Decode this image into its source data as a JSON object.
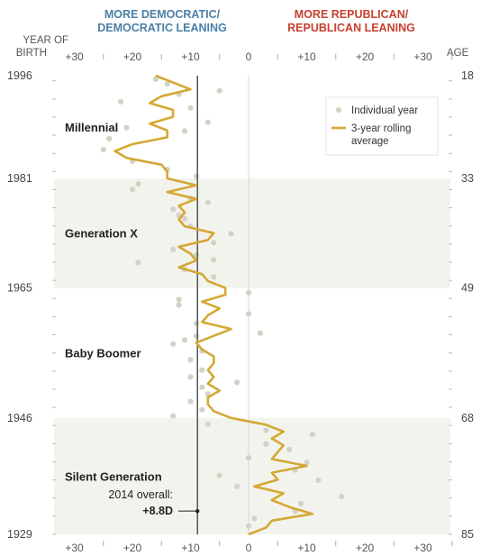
{
  "header": {
    "dem_line1": "MORE DEMOCRATIC/",
    "dem_line2": "DEMOCRATIC LEANING",
    "rep_line1": "MORE REPUBLICAN/",
    "rep_line2": "REPUBLICAN LEANING",
    "year_label_1": "YEAR OF",
    "year_label_2": "BIRTH",
    "age_label": "AGE"
  },
  "colors": {
    "line": "#d4a834",
    "dots": "#d2d3c4",
    "band": "#f3f3ee",
    "reference": "#555555",
    "democratic": "#4a7fa6",
    "republican": "#c5412f"
  },
  "chart_data": {
    "type": "line",
    "xlabel": "",
    "ylabel": "",
    "xlim": [
      -33,
      40
    ],
    "ylim": [
      1929,
      1996
    ],
    "x_ticks": [
      -30,
      -20,
      -10,
      0,
      10,
      20,
      30
    ],
    "x_tick_labels": [
      "+30",
      "+20",
      "+10",
      "0",
      "+10",
      "+20",
      "+30"
    ],
    "year_ticks": [
      1996,
      1981,
      1965,
      1946,
      1929
    ],
    "age_ticks": [
      {
        "year": 1996,
        "age": "18"
      },
      {
        "year": 1981,
        "age": "33"
      },
      {
        "year": 1965,
        "age": "49"
      },
      {
        "year": 1946,
        "age": "68"
      },
      {
        "year": 1929,
        "age": "85"
      }
    ],
    "generations": [
      {
        "name": "Millennial",
        "from": 1981,
        "to": 1996,
        "shaded": false
      },
      {
        "name": "Generation X",
        "from": 1965,
        "to": 1981,
        "shaded": true
      },
      {
        "name": "Baby Boomer",
        "from": 1946,
        "to": 1965,
        "shaded": false
      },
      {
        "name": "Silent Generation",
        "from": 1929,
        "to": 1946,
        "shaded": true
      }
    ],
    "overall": {
      "value": -8.8,
      "label_line1": "2014 overall:",
      "label_line2": "+8.8D"
    },
    "legend": {
      "individual": "Individual year",
      "rolling_1": "3-year rolling",
      "rolling_2": "average",
      "position": "top-right"
    },
    "series": [
      {
        "name": "3-year rolling average",
        "years": [
          1996,
          1995,
          1994,
          1993,
          1992,
          1991,
          1990,
          1989,
          1988,
          1987,
          1986,
          1985,
          1984,
          1983,
          1982,
          1981,
          1980,
          1979,
          1978,
          1977,
          1976,
          1975,
          1974,
          1973,
          1972,
          1971,
          1970,
          1969,
          1968,
          1967,
          1966,
          1965,
          1964,
          1963,
          1962,
          1961,
          1960,
          1959,
          1958,
          1957,
          1956,
          1955,
          1954,
          1953,
          1952,
          1951,
          1950,
          1949,
          1948,
          1947,
          1946,
          1945,
          1944,
          1943,
          1942,
          1941,
          1940,
          1939,
          1938,
          1937,
          1936,
          1935,
          1934,
          1933,
          1932,
          1931,
          1930,
          1929
        ],
        "values": [
          -16,
          -13,
          -10,
          -15,
          -17,
          -13,
          -13,
          -17,
          -14,
          -14,
          -20,
          -23,
          -21,
          -15,
          -14,
          -14,
          -9,
          -14,
          -9,
          -12,
          -11,
          -12,
          -11,
          -6,
          -7,
          -12,
          -10,
          -9,
          -12,
          -8,
          -7,
          -4,
          -4,
          -8,
          -5,
          -7,
          -8,
          -3,
          -6,
          -9,
          -8,
          -6,
          -6,
          -7,
          -6,
          -7,
          -5,
          -7,
          -7,
          -6,
          -3,
          3,
          6,
          4,
          6,
          5,
          4,
          10,
          4,
          5,
          1,
          6,
          4,
          7,
          11,
          4,
          3,
          0
        ]
      },
      {
        "name": "Individual year",
        "points": [
          {
            "year": 1995.5,
            "value": -16
          },
          {
            "year": 1994.8,
            "value": -14
          },
          {
            "year": 1993.8,
            "value": -5
          },
          {
            "year": 1993.3,
            "value": -12
          },
          {
            "year": 1992.2,
            "value": -22
          },
          {
            "year": 1991.3,
            "value": -10
          },
          {
            "year": 1989.2,
            "value": -7
          },
          {
            "year": 1988.4,
            "value": -21
          },
          {
            "year": 1987.9,
            "value": -11
          },
          {
            "year": 1986.8,
            "value": -24
          },
          {
            "year": 1985.2,
            "value": -25
          },
          {
            "year": 1983.5,
            "value": -20
          },
          {
            "year": 1982.3,
            "value": -14
          },
          {
            "year": 1981.3,
            "value": -9
          },
          {
            "year": 1980.2,
            "value": -19
          },
          {
            "year": 1979.4,
            "value": -20
          },
          {
            "year": 1978.1,
            "value": -10
          },
          {
            "year": 1977.5,
            "value": -7
          },
          {
            "year": 1976.5,
            "value": -13
          },
          {
            "year": 1975.6,
            "value": -12
          },
          {
            "year": 1975.1,
            "value": -11
          },
          {
            "year": 1974.0,
            "value": -10
          },
          {
            "year": 1972.9,
            "value": -3
          },
          {
            "year": 1971.6,
            "value": -6
          },
          {
            "year": 1970.6,
            "value": -13
          },
          {
            "year": 1969.8,
            "value": -9
          },
          {
            "year": 1969.1,
            "value": -6
          },
          {
            "year": 1968.7,
            "value": -19
          },
          {
            "year": 1967.7,
            "value": -11
          },
          {
            "year": 1966.6,
            "value": -6
          },
          {
            "year": 1964.3,
            "value": 0
          },
          {
            "year": 1963.3,
            "value": -12
          },
          {
            "year": 1962.5,
            "value": -12
          },
          {
            "year": 1961.2,
            "value": 0
          },
          {
            "year": 1959.8,
            "value": -9
          },
          {
            "year": 1958.4,
            "value": 2
          },
          {
            "year": 1958.0,
            "value": -9
          },
          {
            "year": 1957.4,
            "value": -11
          },
          {
            "year": 1956.8,
            "value": -13
          },
          {
            "year": 1955.8,
            "value": -8
          },
          {
            "year": 1954.5,
            "value": -10
          },
          {
            "year": 1953.0,
            "value": -8
          },
          {
            "year": 1952.0,
            "value": -10
          },
          {
            "year": 1951.2,
            "value": -2
          },
          {
            "year": 1950.5,
            "value": -8
          },
          {
            "year": 1949.5,
            "value": -7
          },
          {
            "year": 1948.4,
            "value": -10
          },
          {
            "year": 1947.2,
            "value": -8
          },
          {
            "year": 1946.3,
            "value": -13
          },
          {
            "year": 1945.1,
            "value": -7
          },
          {
            "year": 1944.2,
            "value": 3
          },
          {
            "year": 1943.6,
            "value": 11
          },
          {
            "year": 1942.2,
            "value": 3
          },
          {
            "year": 1941.4,
            "value": 7
          },
          {
            "year": 1940.2,
            "value": 0
          },
          {
            "year": 1939.5,
            "value": 10
          },
          {
            "year": 1938.4,
            "value": 8
          },
          {
            "year": 1937.6,
            "value": -5
          },
          {
            "year": 1936.9,
            "value": 12
          },
          {
            "year": 1936.0,
            "value": -2
          },
          {
            "year": 1934.5,
            "value": 16
          },
          {
            "year": 1933.5,
            "value": 9
          },
          {
            "year": 1932.4,
            "value": 8
          },
          {
            "year": 1931.3,
            "value": 1
          },
          {
            "year": 1930.2,
            "value": 0
          }
        ]
      }
    ]
  }
}
